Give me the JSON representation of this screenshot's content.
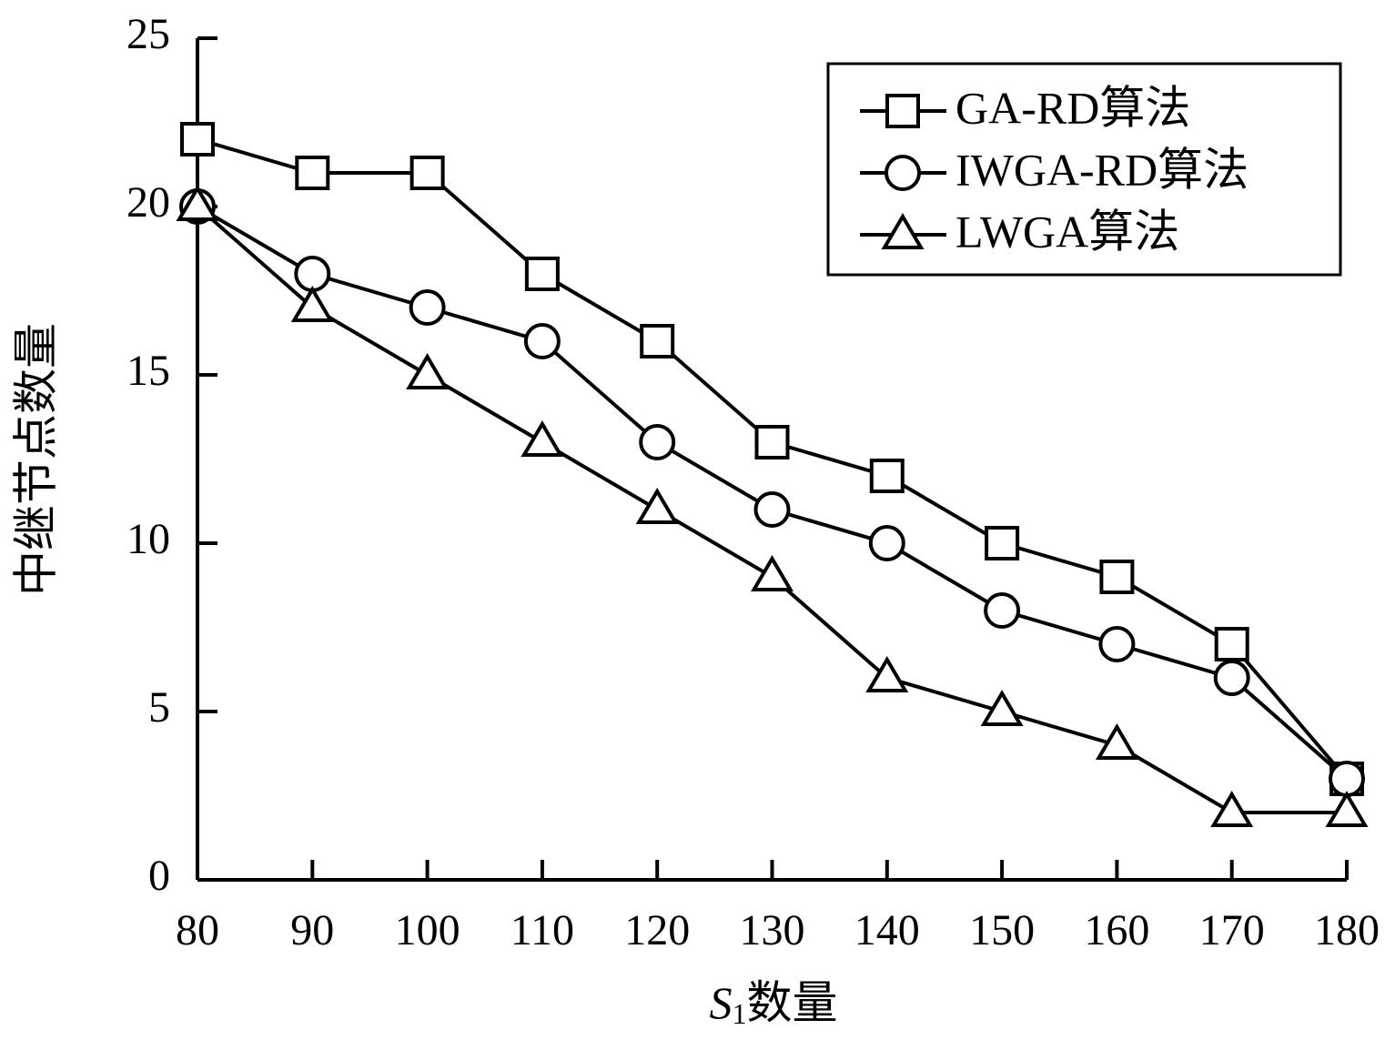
{
  "chart_data": {
    "type": "line",
    "x": [
      80,
      90,
      100,
      110,
      120,
      130,
      140,
      150,
      160,
      170,
      180
    ],
    "xlim": [
      80,
      180
    ],
    "xticks": [
      80,
      90,
      100,
      110,
      120,
      130,
      140,
      150,
      160,
      170,
      180
    ],
    "ylim": [
      0,
      25
    ],
    "yticks": [
      0,
      5,
      10,
      15,
      20,
      25
    ],
    "x_label": {
      "symbol": "S",
      "subscript": "1",
      "text": "数量"
    },
    "y_label": "中继节点数量",
    "legend": "upper right",
    "series": [
      {
        "name": "GA-RD算法",
        "color": "#000000",
        "marker": "square",
        "values": [
          22,
          21,
          21,
          18,
          16,
          13,
          12,
          10,
          9,
          7,
          3
        ]
      },
      {
        "name": "IWGA-RD算法",
        "color": "#000000",
        "marker": "circle",
        "values": [
          20,
          18,
          17,
          16,
          13,
          11,
          10,
          8,
          7,
          6,
          3
        ]
      },
      {
        "name": "LWGA算法",
        "color": "#000000",
        "marker": "triangle",
        "values": [
          20,
          17,
          15,
          13,
          11,
          9,
          6,
          5,
          4,
          2,
          2
        ]
      }
    ]
  }
}
